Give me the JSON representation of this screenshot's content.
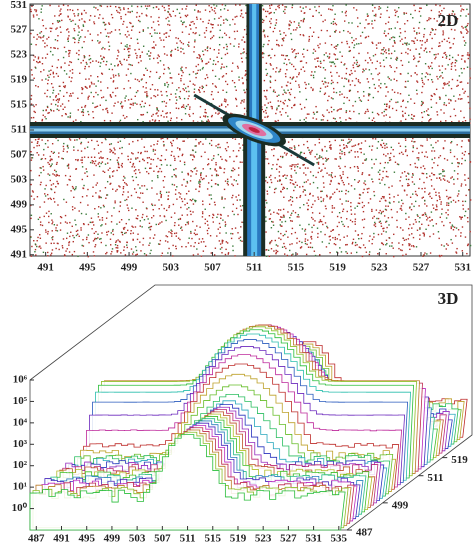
{
  "chart_data": [
    {
      "type": "density2d",
      "label": "2D",
      "xlim": [
        489.5,
        531.7
      ],
      "xticks": [
        491,
        495,
        499,
        503,
        507,
        511,
        515,
        519,
        523,
        527,
        531
      ],
      "ylim": [
        490.8,
        531.2
      ],
      "yticks": [
        491,
        495,
        499,
        503,
        507,
        511,
        515,
        519,
        523,
        527,
        531
      ]
    },
    {
      "type": "surface3d",
      "label": "3D",
      "xlim": [
        486,
        536.3
      ],
      "xticks": [
        487,
        491,
        495,
        499,
        503,
        507,
        511,
        515,
        519,
        523,
        527,
        531,
        535
      ],
      "ylim": [
        487,
        529
      ],
      "yticks": [
        487,
        499,
        511,
        519
      ],
      "log_z": true,
      "zlim": [
        0.1,
        1000000
      ],
      "zticks": [
        {
          "value": 1,
          "label": "10⁰"
        },
        {
          "value": 10,
          "label": "10¹"
        },
        {
          "value": 100,
          "label": "10²"
        },
        {
          "value": 1000,
          "label": "10³"
        },
        {
          "value": 10000,
          "label": "10⁴"
        },
        {
          "value": 100000,
          "label": "10⁵"
        },
        {
          "value": 1000000,
          "label": "10⁶"
        }
      ]
    }
  ]
}
